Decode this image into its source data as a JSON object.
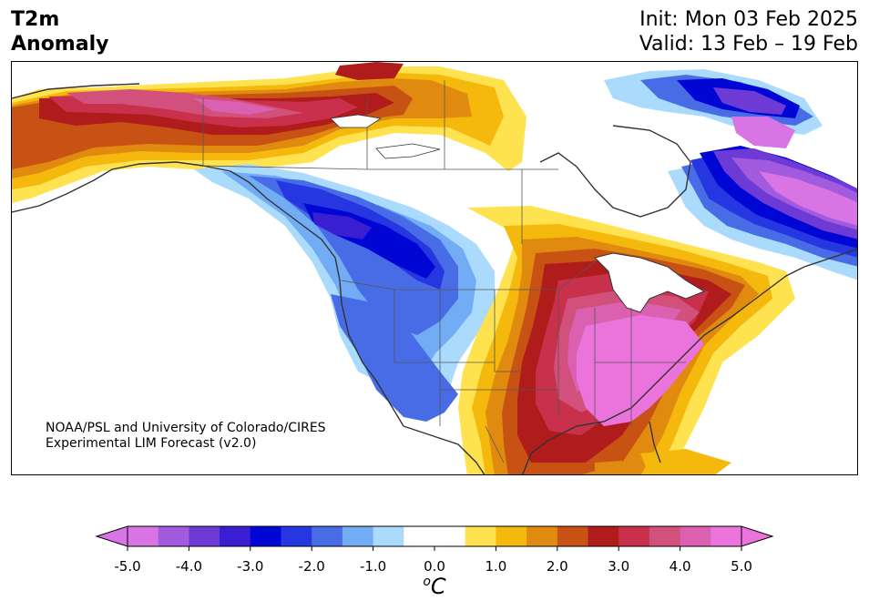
{
  "header": {
    "title_line1": "T2m",
    "title_line2": "Anomaly",
    "init_text": "Init: Mon 03 Feb 2025",
    "valid_text": "Valid: 13 Feb – 19 Feb"
  },
  "credit": {
    "line1": "NOAA/PSL and University of Colorado/CIRES",
    "line2": "Experimental LIM Forecast (v2.0)"
  },
  "colorbar": {
    "unit_base": "C",
    "unit_sup": "o",
    "ticks": [
      "-5.0",
      "-4.0",
      "-3.0",
      "-2.0",
      "-1.0",
      "0.0",
      "1.0",
      "2.0",
      "3.0",
      "4.0",
      "5.0"
    ],
    "colors": [
      "#d874e4",
      "#a25ade",
      "#6e3ad6",
      "#3a1ed2",
      "#0006d4",
      "#2636e0",
      "#486ce6",
      "#72acf4",
      "#aadafc",
      "#ffffff",
      "#ffffff",
      "#fee250",
      "#f4b90c",
      "#e08a10",
      "#c85214",
      "#b01c1c",
      "#c8304c",
      "#d2507c",
      "#dc60b0",
      "#ea74dc"
    ],
    "under_color": "#d874e4",
    "over_color": "#ea74dc"
  }
}
